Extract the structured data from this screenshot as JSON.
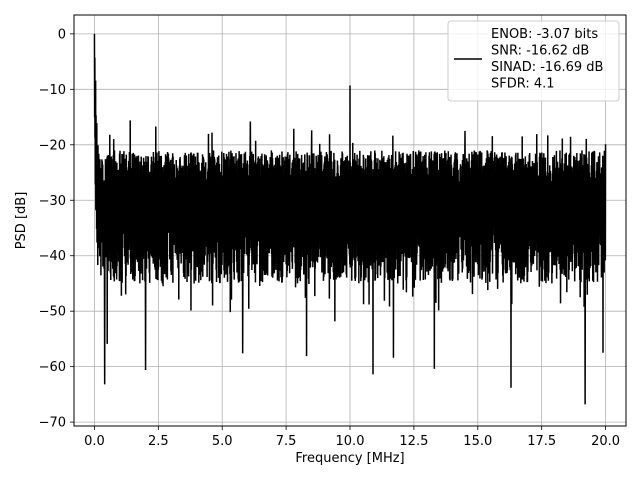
{
  "chart_data": {
    "type": "line",
    "xlabel": "Frequency [MHz]",
    "ylabel": "PSD [dB]",
    "xlim": [
      -0.8,
      20.8
    ],
    "ylim": [
      -70.7,
      3.4
    ],
    "xticks": [
      0.0,
      2.5,
      5.0,
      7.5,
      10.0,
      12.5,
      15.0,
      17.5,
      20.0
    ],
    "xtick_labels": [
      "0.0",
      "2.5",
      "5.0",
      "7.5",
      "10.0",
      "12.5",
      "15.0",
      "17.5",
      "20.0"
    ],
    "yticks": [
      0,
      -10,
      -20,
      -30,
      -40,
      -50,
      -60,
      -70
    ],
    "ytick_labels": [
      "0",
      "−10",
      "−20",
      "−30",
      "−40",
      "−50",
      "−60",
      "−70"
    ],
    "grid": true,
    "legend_position": "top-right",
    "series": [
      {
        "name": "",
        "color": "#000000",
        "x_start": 0.0,
        "x_end": 20.0,
        "noise_floor_db": -31,
        "upper_envelope_db": -21,
        "lower_envelope_db": -45,
        "peak_max_db": -15,
        "trough_min_db": -67,
        "dc_peak": {
          "x": 0.0,
          "y": 0.0
        },
        "tone": {
          "x": 10.0,
          "y": -9.3
        },
        "deep_nulls": [
          {
            "x": 0.4,
            "y": -63.2
          },
          {
            "x": 0.5,
            "y": -55.9
          },
          {
            "x": 2.0,
            "y": -60.6
          },
          {
            "x": 5.8,
            "y": -57.6
          },
          {
            "x": 8.3,
            "y": -58.1
          },
          {
            "x": 10.9,
            "y": -61.4
          },
          {
            "x": 11.7,
            "y": -58.4
          },
          {
            "x": 13.3,
            "y": -60.4
          },
          {
            "x": 16.3,
            "y": -63.8
          },
          {
            "x": 19.2,
            "y": -66.8
          },
          {
            "x": 19.9,
            "y": -57.5
          }
        ],
        "tall_peaks": [
          {
            "x": 0.6,
            "y": -18.2
          },
          {
            "x": 1.4,
            "y": -15.6
          },
          {
            "x": 2.4,
            "y": -16.7
          },
          {
            "x": 4.6,
            "y": -17.8
          },
          {
            "x": 6.1,
            "y": -15.8
          },
          {
            "x": 7.8,
            "y": -17.1
          },
          {
            "x": 8.5,
            "y": -17.4
          },
          {
            "x": 9.2,
            "y": -18.1
          },
          {
            "x": 14.5,
            "y": -17.5
          },
          {
            "x": 20.0,
            "y": -19.9
          }
        ]
      }
    ],
    "legend": {
      "lines": [
        "ENOB: -3.07 bits",
        "SNR: -16.62 dB",
        "SINAD: -16.69 dB",
        "SFDR: 4.1"
      ]
    }
  }
}
